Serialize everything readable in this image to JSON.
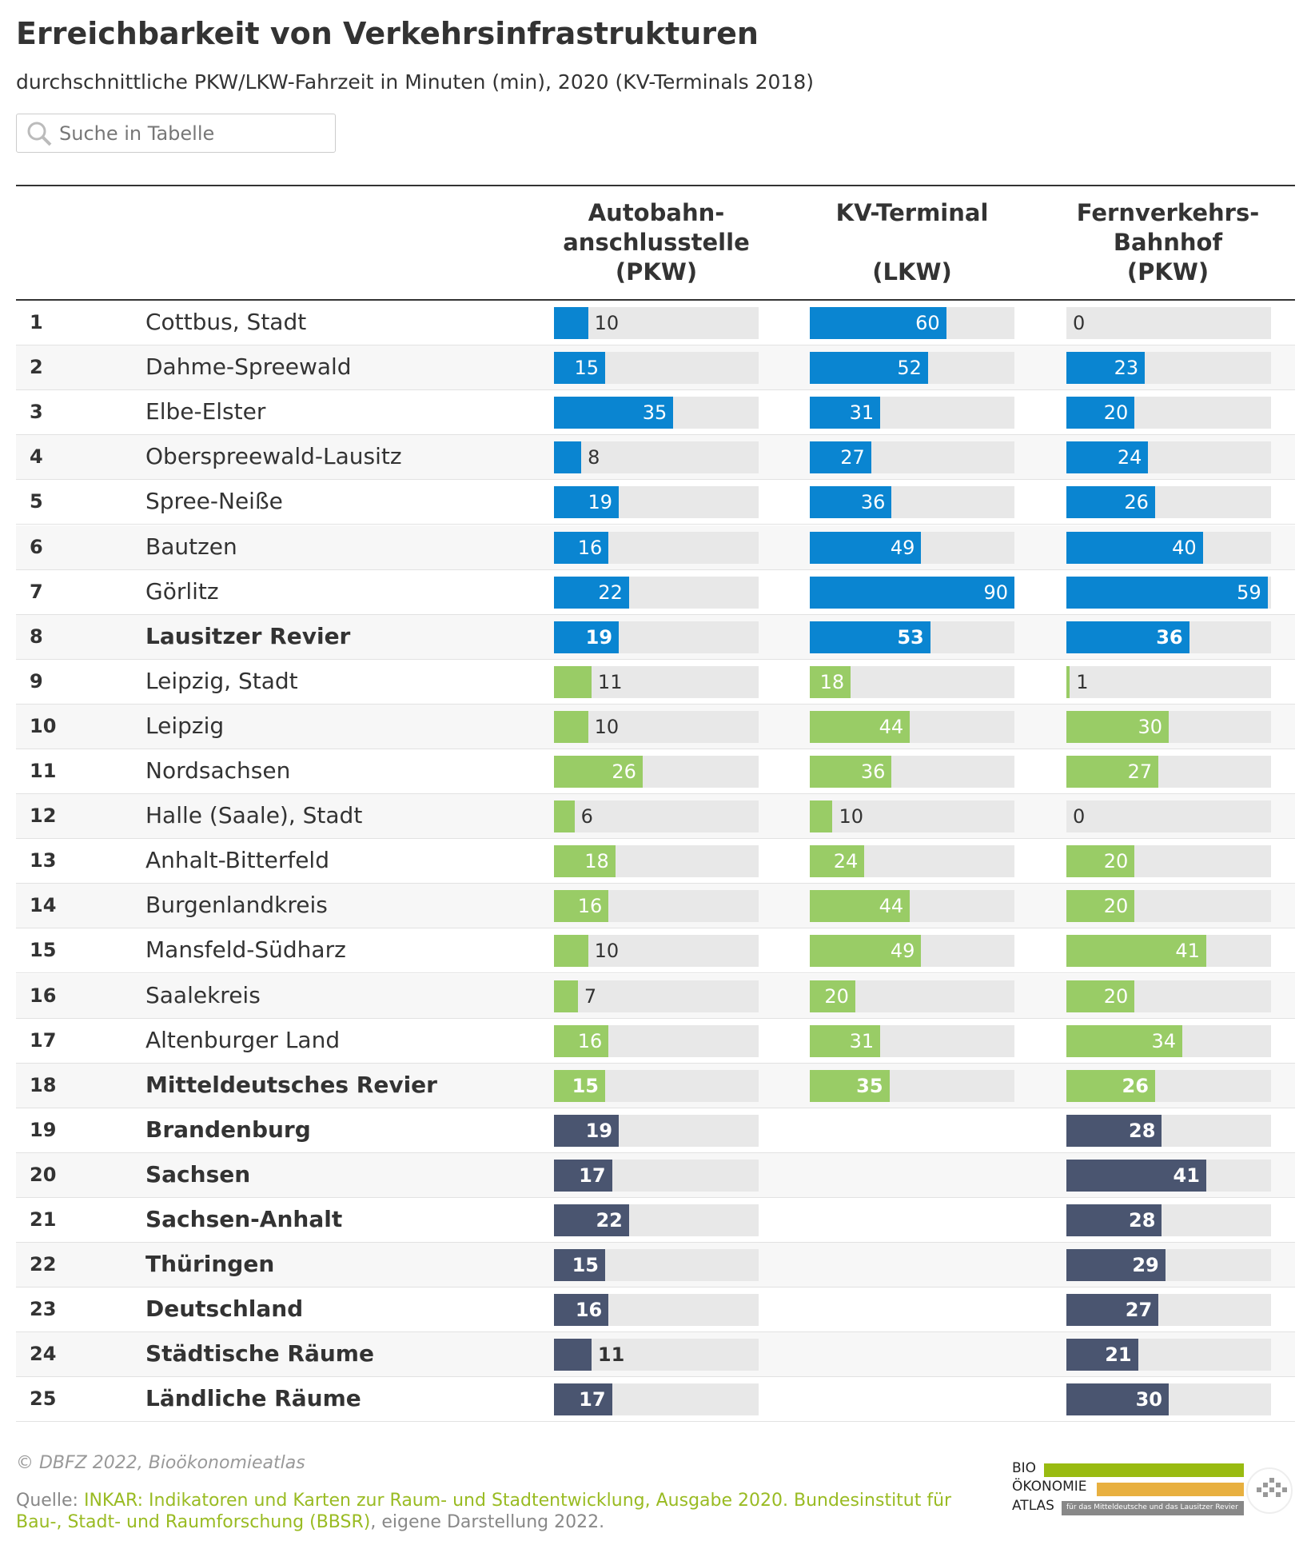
{
  "title": "Erreichbarkeit von Verkehrsinfrastrukturen",
  "subtitle": "durchschnittliche PKW/LKW-Fahrzeit in Minuten (min), 2020 (KV-Terminals 2018)",
  "search_placeholder": "Suche in Tabelle",
  "table": {
    "columns": [
      {
        "header": [
          "Autobahn-",
          "anschlusstelle",
          "(PKW)"
        ],
        "xlim": [
          0,
          60
        ]
      },
      {
        "header": [
          "KV-Terminal",
          "(LKW)"
        ],
        "xlim": [
          0,
          90
        ]
      },
      {
        "header": [
          "Fernverkehrs-",
          "Bahnhof",
          "(PKW)"
        ],
        "xlim": [
          0,
          60
        ]
      }
    ],
    "rows": [
      {
        "rank": 1,
        "name": "Cottbus, Stadt",
        "values": [
          10,
          60,
          0
        ],
        "color": "#0a85d1",
        "bold": false
      },
      {
        "rank": 2,
        "name": "Dahme-Spreewald",
        "values": [
          15,
          52,
          23
        ],
        "color": "#0a85d1",
        "bold": false
      },
      {
        "rank": 3,
        "name": "Elbe-Elster",
        "values": [
          35,
          31,
          20
        ],
        "color": "#0a85d1",
        "bold": false
      },
      {
        "rank": 4,
        "name": "Oberspreewald-Lausitz",
        "values": [
          8,
          27,
          24
        ],
        "color": "#0a85d1",
        "bold": false
      },
      {
        "rank": 5,
        "name": "Spree-Neiße",
        "values": [
          19,
          36,
          26
        ],
        "color": "#0a85d1",
        "bold": false
      },
      {
        "rank": 6,
        "name": "Bautzen",
        "values": [
          16,
          49,
          40
        ],
        "color": "#0a85d1",
        "bold": false
      },
      {
        "rank": 7,
        "name": "Görlitz",
        "values": [
          22,
          90,
          59
        ],
        "color": "#0a85d1",
        "bold": false
      },
      {
        "rank": 8,
        "name": "Lausitzer Revier",
        "values": [
          19,
          53,
          36
        ],
        "color": "#0a85d1",
        "bold": true
      },
      {
        "rank": 9,
        "name": "Leipzig, Stadt",
        "values": [
          11,
          18,
          1
        ],
        "color": "#99cc66",
        "bold": false
      },
      {
        "rank": 10,
        "name": "Leipzig",
        "values": [
          10,
          44,
          30
        ],
        "color": "#99cc66",
        "bold": false
      },
      {
        "rank": 11,
        "name": "Nordsachsen",
        "values": [
          26,
          36,
          27
        ],
        "color": "#99cc66",
        "bold": false
      },
      {
        "rank": 12,
        "name": "Halle (Saale), Stadt",
        "values": [
          6,
          10,
          0
        ],
        "color": "#99cc66",
        "bold": false
      },
      {
        "rank": 13,
        "name": "Anhalt-Bitterfeld",
        "values": [
          18,
          24,
          20
        ],
        "color": "#99cc66",
        "bold": false
      },
      {
        "rank": 14,
        "name": "Burgenlandkreis",
        "values": [
          16,
          44,
          20
        ],
        "color": "#99cc66",
        "bold": false
      },
      {
        "rank": 15,
        "name": "Mansfeld-Südharz",
        "values": [
          10,
          49,
          41
        ],
        "color": "#99cc66",
        "bold": false
      },
      {
        "rank": 16,
        "name": "Saalekreis",
        "values": [
          7,
          20,
          20
        ],
        "color": "#99cc66",
        "bold": false
      },
      {
        "rank": 17,
        "name": "Altenburger Land",
        "values": [
          16,
          31,
          34
        ],
        "color": "#99cc66",
        "bold": false
      },
      {
        "rank": 18,
        "name": "Mitteldeutsches Revier",
        "values": [
          15,
          35,
          26
        ],
        "color": "#99cc66",
        "bold": true
      },
      {
        "rank": 19,
        "name": "Brandenburg",
        "values": [
          19,
          null,
          28
        ],
        "color": "#4a5570",
        "bold": true
      },
      {
        "rank": 20,
        "name": "Sachsen",
        "values": [
          17,
          null,
          41
        ],
        "color": "#4a5570",
        "bold": true
      },
      {
        "rank": 21,
        "name": "Sachsen-Anhalt",
        "values": [
          22,
          null,
          28
        ],
        "color": "#4a5570",
        "bold": true
      },
      {
        "rank": 22,
        "name": "Thüringen",
        "values": [
          15,
          null,
          29
        ],
        "color": "#4a5570",
        "bold": true
      },
      {
        "rank": 23,
        "name": "Deutschland",
        "values": [
          16,
          null,
          27
        ],
        "color": "#4a5570",
        "bold": true
      },
      {
        "rank": 24,
        "name": "Städtische Räume",
        "values": [
          11,
          null,
          21
        ],
        "color": "#4a5570",
        "bold": true
      },
      {
        "rank": 25,
        "name": "Ländliche Räume",
        "values": [
          17,
          null,
          30
        ],
        "color": "#4a5570",
        "bold": true
      }
    ]
  },
  "credit": "© DBFZ 2022, Bioökonomieatlas",
  "source": {
    "label": "Quelle:",
    "link": "INKAR: Indikatoren und Karten zur Raum- und Stadtentwicklung, Ausgabe 2020. Bundesinstitut für Bau-, Stadt- und Raumforschung (BBSR)",
    "suffix": ", eigene Darstellung 2022."
  },
  "logo": {
    "lines": [
      "BIO",
      "ÖKONOMIE",
      "ATLAS"
    ],
    "tagline": "für das Mitteldeutsche und das Lausitzer Revier"
  }
}
